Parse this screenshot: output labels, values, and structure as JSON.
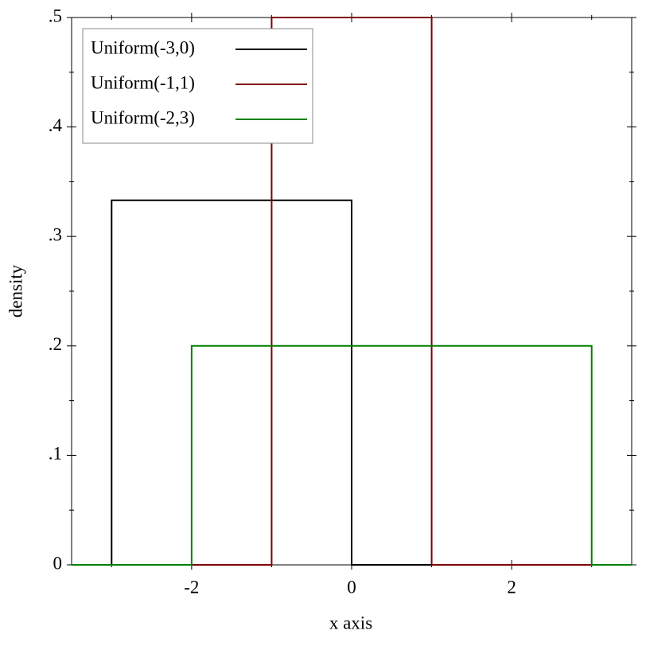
{
  "chart_data": {
    "type": "line",
    "xlabel": "x axis",
    "ylabel": "density",
    "xlim": [
      -3.5,
      3.5
    ],
    "ylim": [
      0,
      0.5
    ],
    "xticks": [
      -2,
      0,
      2
    ],
    "xminorticks": [
      -3,
      -1,
      1,
      3
    ],
    "yticks": [
      0,
      {
        "value": 0.1,
        "label": ".1"
      },
      {
        "value": 0.2,
        "label": ".2"
      },
      {
        "value": 0.3,
        "label": ".3"
      },
      {
        "value": 0.4,
        "label": ".4"
      },
      {
        "value": 0.5,
        "label": ".5"
      }
    ],
    "yminorticks": [
      0.05,
      0.15,
      0.25,
      0.35,
      0.45
    ],
    "legend": "top-left",
    "series": [
      {
        "name": "Uniform(-3,0)",
        "color": "#000000",
        "x": [
          -3.5,
          -3,
          -3,
          0,
          0,
          3.5
        ],
        "values": [
          0,
          0,
          0.333,
          0.333,
          0,
          0
        ]
      },
      {
        "name": "Uniform(-1,1)",
        "color": "#7f0000",
        "x": [
          -3.5,
          -1,
          -1,
          1,
          1,
          3.5
        ],
        "values": [
          0,
          0,
          0.5,
          0.5,
          0,
          0
        ]
      },
      {
        "name": "Uniform(-2,3)",
        "color": "#008000",
        "x": [
          -3.5,
          -2,
          -2,
          3,
          3,
          3.5
        ],
        "values": [
          0,
          0,
          0.2,
          0.2,
          0,
          0
        ]
      }
    ]
  }
}
